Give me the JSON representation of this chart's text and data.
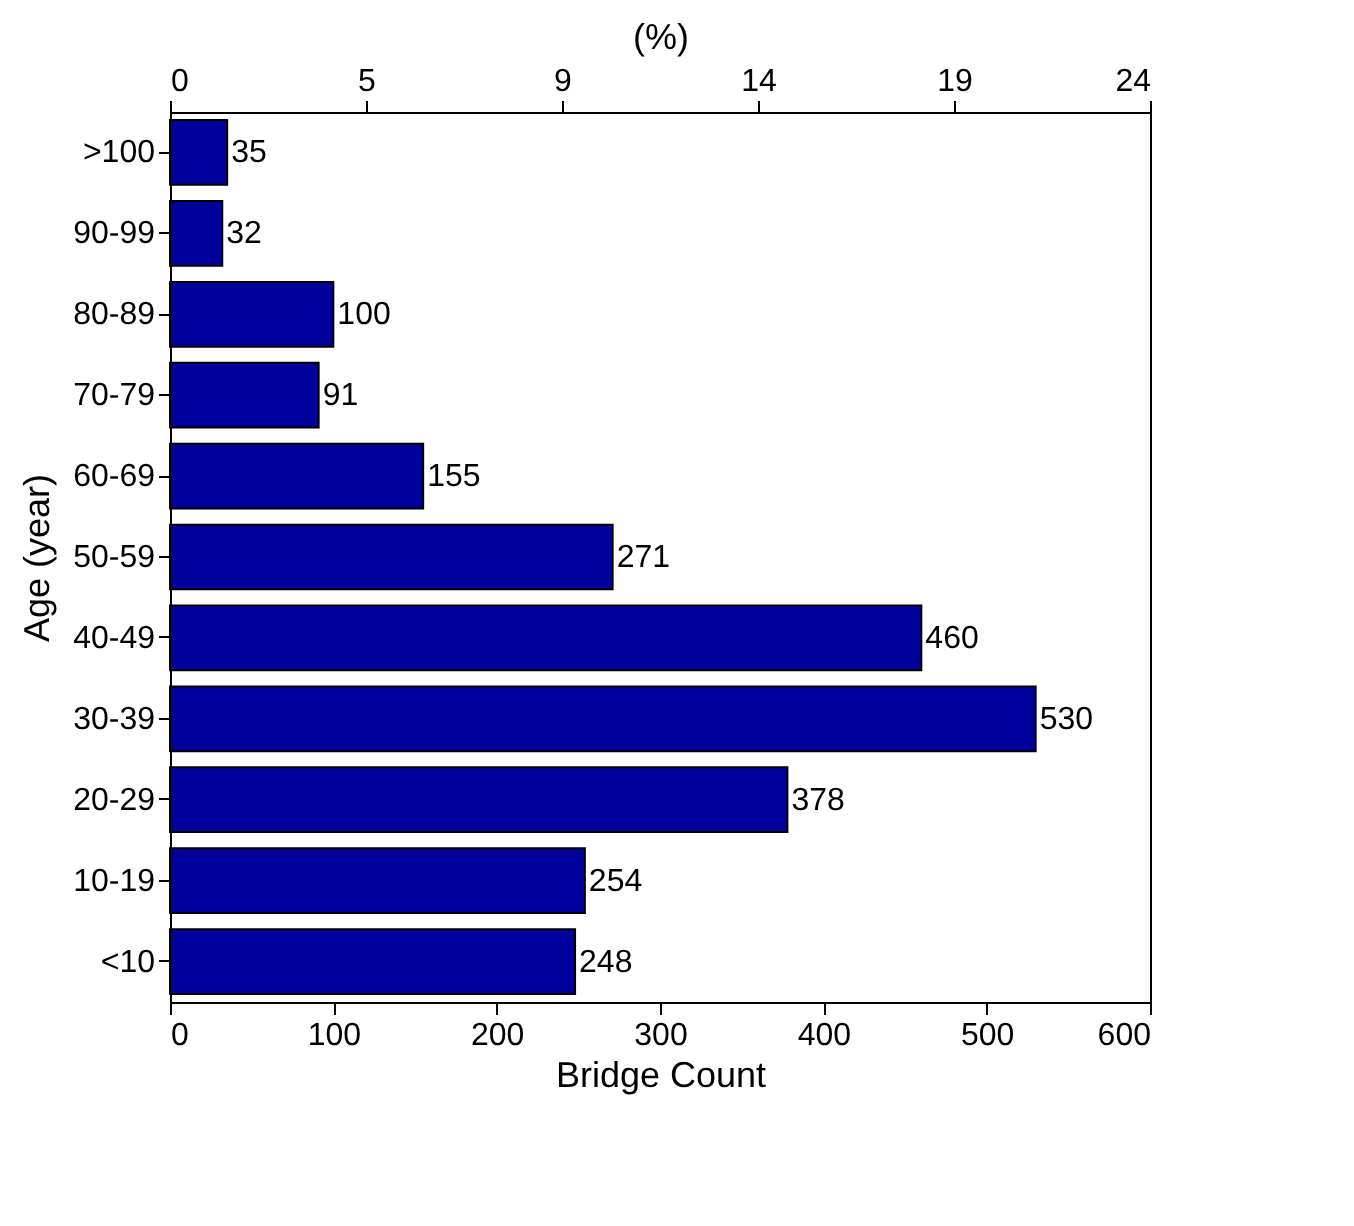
{
  "chart_data": {
    "type": "bar",
    "orientation": "horizontal",
    "xlabel": "Bridge Count",
    "ylabel": "Age (year)",
    "x2label": "(%)",
    "categories": [
      ">100",
      "90-99",
      "80-89",
      "70-79",
      "60-69",
      "50-59",
      "40-49",
      "30-39",
      "20-29",
      "10-19",
      "<10"
    ],
    "values": [
      35,
      32,
      100,
      91,
      155,
      271,
      460,
      530,
      378,
      254,
      248
    ],
    "color": "#00009c",
    "data_labels": true,
    "grid": false,
    "xlim": [
      0,
      600
    ],
    "xticks": [
      0,
      100,
      200,
      300,
      400,
      500,
      600
    ],
    "x2lim": [
      0,
      23.5
    ],
    "x2ticks": [
      0,
      {
        "value": 4.7,
        "label": "5"
      },
      {
        "value": 9.4,
        "label": "9"
      },
      {
        "value": 14.1,
        "label": "14"
      },
      {
        "value": 18.8,
        "label": "19"
      },
      {
        "value": 23.5,
        "label": "24"
      }
    ]
  }
}
